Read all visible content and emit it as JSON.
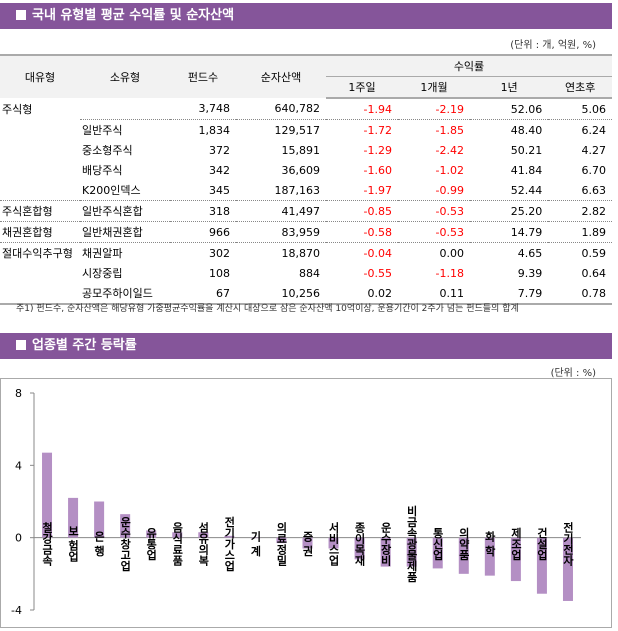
{
  "section1": {
    "title": "국내 유형별 평균 수익률 및 순자산액",
    "unit": "(단위 : 개, 억원, %)"
  },
  "table": {
    "headers": {
      "major": "대유형",
      "minor": "소유형",
      "funds": "펀드수",
      "assets": "순자산액",
      "returns": "수익률",
      "w1": "1주일",
      "m1": "1개월",
      "y1": "1년",
      "ytd": "연초후"
    },
    "rows": [
      {
        "major": "주식형",
        "minor": "",
        "funds": "3,748",
        "assets": "640,782",
        "w1": "-1.94",
        "m1": "-2.19",
        "y1": "52.06",
        "ytd": "5.06",
        "sep": false
      },
      {
        "major": "",
        "minor": "일반주식",
        "funds": "1,834",
        "assets": "129,517",
        "w1": "-1.72",
        "m1": "-1.85",
        "y1": "48.40",
        "ytd": "6.24",
        "sep": true
      },
      {
        "major": "",
        "minor": "중소형주식",
        "funds": "372",
        "assets": "15,891",
        "w1": "-1.29",
        "m1": "-2.42",
        "y1": "50.21",
        "ytd": "4.27",
        "sep": false
      },
      {
        "major": "",
        "minor": "배당주식",
        "funds": "342",
        "assets": "36,609",
        "w1": "-1.60",
        "m1": "-1.02",
        "y1": "41.84",
        "ytd": "6.70",
        "sep": false
      },
      {
        "major": "",
        "minor": "K200인덱스",
        "funds": "345",
        "assets": "187,163",
        "w1": "-1.97",
        "m1": "-0.99",
        "y1": "52.44",
        "ytd": "6.63",
        "sep": false
      },
      {
        "major": "주식혼합형",
        "minor": "일반주식혼합",
        "funds": "318",
        "assets": "41,497",
        "w1": "-0.85",
        "m1": "-0.53",
        "y1": "25.20",
        "ytd": "2.82",
        "sep": true
      },
      {
        "major": "채권혼합형",
        "minor": "일반채권혼합",
        "funds": "966",
        "assets": "83,959",
        "w1": "-0.58",
        "m1": "-0.53",
        "y1": "14.79",
        "ytd": "1.89",
        "sep": true
      },
      {
        "major": "절대수익추구형",
        "minor": "채권알파",
        "funds": "302",
        "assets": "18,870",
        "w1": "-0.04",
        "m1": "0.00",
        "y1": "4.65",
        "ytd": "0.59",
        "sep": true
      },
      {
        "major": "",
        "minor": "시장중립",
        "funds": "108",
        "assets": "884",
        "w1": "-0.55",
        "m1": "-1.18",
        "y1": "9.39",
        "ytd": "0.64",
        "sep": false
      },
      {
        "major": "",
        "minor": "공모주하이일드",
        "funds": "67",
        "assets": "10,256",
        "w1": "0.02",
        "m1": "0.11",
        "y1": "7.79",
        "ytd": "0.78",
        "sep": false
      }
    ],
    "note": "주1) 펀드수, 순자산액은 해당유형 가중평균수익률을 계산시 대상으로 삼은 순자산액 10억이상, 운용기간이 2주가 넘는 펀드들의 합계"
  },
  "section2": {
    "title": "업종별 주간 등락률",
    "unit": "(단위 : %)"
  },
  "colors": {
    "header": "#85559a",
    "bar": "#b48fc4",
    "negative": "#ff0000"
  },
  "chart_data": {
    "type": "bar",
    "categories": [
      "철강금속",
      "보험업",
      "은행",
      "운수창고업",
      "유통업",
      "음식료품",
      "섬유의복",
      "전기가스업",
      "기계",
      "의료정밀",
      "증권",
      "서비스업",
      "종이목재",
      "운수장비",
      "비금속광물제품",
      "통신업",
      "의약품",
      "화학",
      "제조업",
      "건설업",
      "전기전자"
    ],
    "category_labels": [
      "철강금속",
      "보 험업",
      "은 행",
      "운수창고업",
      "유통업",
      "음식료품",
      "섬유의복",
      "전기가스업",
      "기 계",
      "의료정밀",
      "증 권",
      "서비스업",
      "종이목재",
      "운수장비",
      "비금속광물제품",
      "통신업",
      "의약품",
      "화 학",
      "제조업",
      "건설업",
      "전기전자"
    ],
    "values": [
      4.7,
      2.2,
      2.0,
      1.3,
      0.4,
      0.3,
      0.3,
      0.1,
      0.0,
      -0.3,
      -0.6,
      -0.6,
      -1.2,
      -1.6,
      -1.6,
      -1.7,
      -2.0,
      -2.1,
      -2.4,
      -3.1,
      -3.5
    ],
    "ylim": [
      -4,
      8
    ],
    "yticks": [
      "8",
      "4",
      "0",
      "-4"
    ],
    "grid": false
  }
}
